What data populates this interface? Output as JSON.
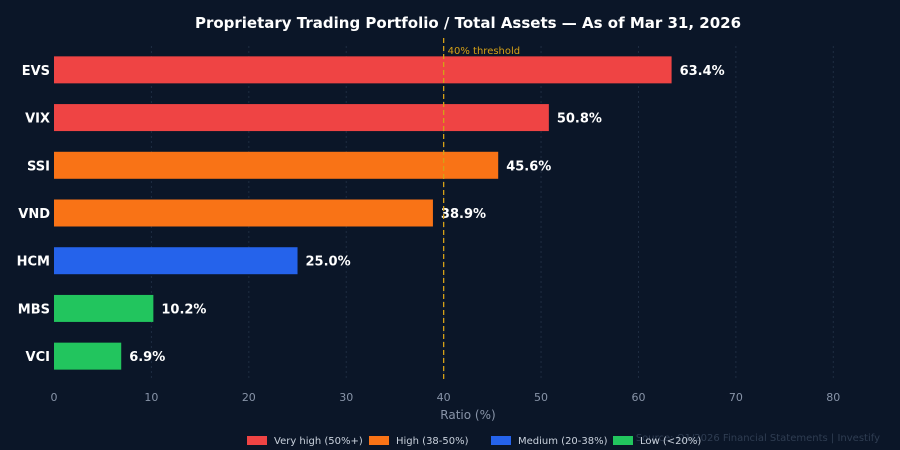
{
  "chart_data": {
    "type": "bar",
    "orientation": "horizontal",
    "title": "Proprietary Trading Portfolio / Total Assets — As of Mar 31, 2026",
    "xlabel": "Ratio (%)",
    "ylabel": "",
    "xlim": [
      0,
      85
    ],
    "xticks": [
      0,
      10,
      20,
      30,
      40,
      50,
      60,
      70,
      80
    ],
    "grid": true,
    "categories": [
      "EVS",
      "VIX",
      "SSI",
      "VND",
      "HCM",
      "MBS",
      "VCI"
    ],
    "values": [
      63.4,
      50.8,
      45.6,
      38.9,
      25.0,
      10.2,
      6.9
    ],
    "value_labels": [
      "63.4%",
      "50.8%",
      "45.6%",
      "38.9%",
      "25.0%",
      "10.2%",
      "6.9%"
    ],
    "bar_groups": [
      "very_high",
      "very_high",
      "high",
      "high",
      "medium",
      "low",
      "low"
    ],
    "groups": [
      {
        "key": "very_high",
        "name": "Very high (50%+)",
        "color": "#ef4444"
      },
      {
        "key": "high",
        "name": "High (38-50%)",
        "color": "#f97316"
      },
      {
        "key": "medium",
        "name": "Medium (20-38%)",
        "color": "#2563eb"
      },
      {
        "key": "low",
        "name": "Low (<20%)",
        "color": "#22c55e"
      }
    ],
    "threshold": {
      "value": 40,
      "label": "40% threshold",
      "color": "#d4a017"
    },
    "legend_position": "bottom",
    "source": "Source: Q1/2026 Financial Statements  |  Investify"
  },
  "colors": {
    "background": "#0b1628",
    "grid": "#1f2d42"
  }
}
